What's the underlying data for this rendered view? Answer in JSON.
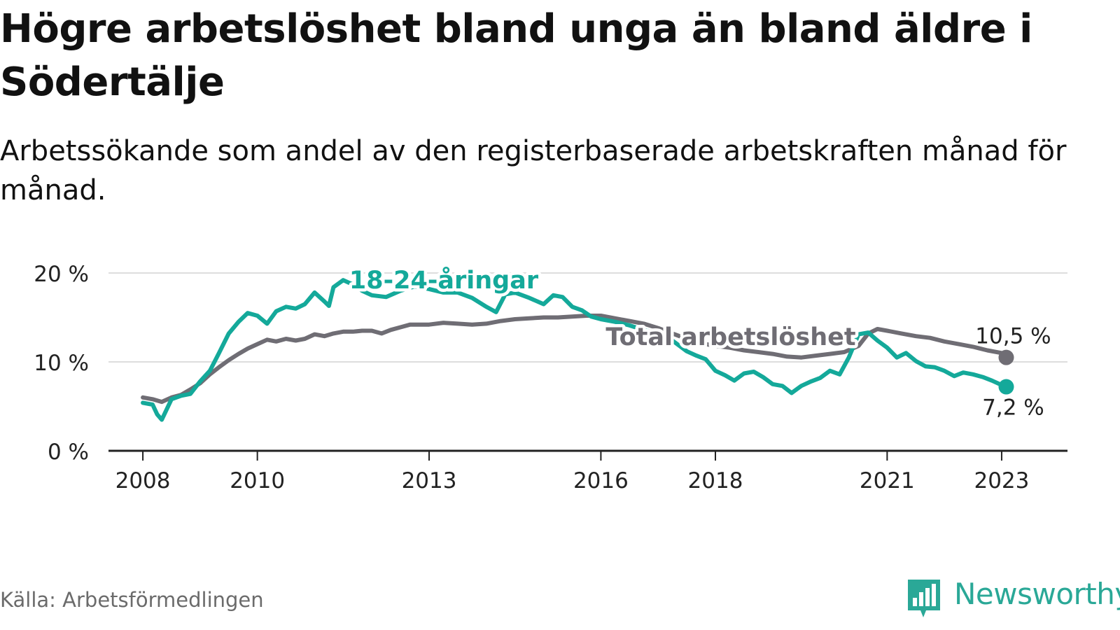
{
  "header": {
    "title": "Högre arbetslöshet bland unga än bland äldre i Södertälje",
    "subtitle": "Arbetssökande som andel av den registerbaserade arbetskraften månad för månad."
  },
  "footer": {
    "source": "Källa: Arbetsförmedlingen",
    "brand": "Newsworthy",
    "brand_icon": "newsworthy-bar-chart-icon"
  },
  "colors": {
    "total": "#6f6d74",
    "youth": "#14a99a",
    "grid": "#dddddd",
    "axis": "#222222",
    "brand": "#2aa897"
  },
  "chart_data": {
    "type": "line",
    "title": "Högre arbetslöshet bland unga än bland äldre i Södertälje",
    "subtitle": "Arbetssökande som andel av den registerbaserade arbetskraften månad för månad.",
    "xlabel": "",
    "ylabel": "",
    "x_unit": "year (decimal, monthly)",
    "xlim": [
      2007.4,
      2024.15
    ],
    "ylim": [
      0,
      20
    ],
    "x_ticks": [
      2008,
      2010,
      2013,
      2016,
      2018,
      2021,
      2023
    ],
    "x_tick_labels": [
      "2008",
      "2010",
      "2013",
      "2016",
      "2018",
      "2021",
      "2023"
    ],
    "y_ticks": [
      0,
      10,
      20
    ],
    "y_tick_labels": [
      "0 %",
      "10 %",
      "20 %"
    ],
    "grid": true,
    "series": [
      {
        "name": "Total arbetslöshet",
        "label": "Total arbetslöshet",
        "end_label": "10,5 %",
        "x": [
          2008.0,
          2008.17,
          2008.33,
          2008.5,
          2008.67,
          2008.83,
          2009.0,
          2009.17,
          2009.33,
          2009.5,
          2009.67,
          2009.83,
          2010.0,
          2010.17,
          2010.33,
          2010.5,
          2010.67,
          2010.83,
          2011.0,
          2011.17,
          2011.33,
          2011.5,
          2011.67,
          2011.83,
          2012.0,
          2012.17,
          2012.33,
          2012.5,
          2012.67,
          2012.83,
          2013.0,
          2013.25,
          2013.5,
          2013.75,
          2014.0,
          2014.25,
          2014.5,
          2014.75,
          2015.0,
          2015.25,
          2015.5,
          2015.75,
          2016.0,
          2016.25,
          2016.5,
          2016.75,
          2017.0,
          2017.25,
          2017.5,
          2017.75,
          2018.0,
          2018.25,
          2018.5,
          2018.75,
          2019.0,
          2019.25,
          2019.5,
          2019.75,
          2020.0,
          2020.25,
          2020.5,
          2020.67,
          2020.83,
          2021.0,
          2021.25,
          2021.5,
          2021.75,
          2022.0,
          2022.25,
          2022.5,
          2022.75,
          2023.0,
          2023.08
        ],
        "y": [
          6.0,
          5.8,
          5.5,
          6.0,
          6.3,
          6.9,
          7.6,
          8.6,
          9.4,
          10.2,
          10.9,
          11.5,
          12.0,
          12.5,
          12.3,
          12.6,
          12.4,
          12.6,
          13.1,
          12.9,
          13.2,
          13.4,
          13.4,
          13.5,
          13.5,
          13.2,
          13.6,
          13.9,
          14.2,
          14.2,
          14.2,
          14.4,
          14.3,
          14.2,
          14.3,
          14.6,
          14.8,
          14.9,
          15.0,
          15.0,
          15.1,
          15.2,
          15.2,
          14.9,
          14.6,
          14.3,
          13.8,
          13.2,
          12.6,
          12.1,
          11.8,
          11.6,
          11.3,
          11.1,
          10.9,
          10.6,
          10.5,
          10.7,
          10.9,
          11.1,
          11.8,
          13.2,
          13.7,
          13.5,
          13.2,
          12.9,
          12.7,
          12.3,
          12.0,
          11.7,
          11.3,
          11.0,
          10.5
        ]
      },
      {
        "name": "18-24-åringar",
        "label": "18-24-åringar",
        "end_label": "7,2 %",
        "x": [
          2008.0,
          2008.17,
          2008.25,
          2008.33,
          2008.5,
          2008.67,
          2008.83,
          2009.0,
          2009.17,
          2009.33,
          2009.5,
          2009.67,
          2009.83,
          2010.0,
          2010.17,
          2010.33,
          2010.5,
          2010.67,
          2010.83,
          2011.0,
          2011.17,
          2011.25,
          2011.33,
          2011.5,
          2011.67,
          2011.83,
          2012.0,
          2012.25,
          2012.5,
          2012.75,
          2013.0,
          2013.25,
          2013.5,
          2013.75,
          2014.0,
          2014.17,
          2014.33,
          2014.5,
          2014.75,
          2015.0,
          2015.17,
          2015.33,
          2015.5,
          2015.67,
          2015.83,
          2016.0,
          2016.25,
          2016.5,
          2016.75,
          2017.0,
          2017.25,
          2017.5,
          2017.67,
          2017.83,
          2018.0,
          2018.17,
          2018.33,
          2018.5,
          2018.67,
          2018.83,
          2019.0,
          2019.17,
          2019.33,
          2019.5,
          2019.67,
          2019.83,
          2020.0,
          2020.17,
          2020.33,
          2020.5,
          2020.67,
          2020.83,
          2021.0,
          2021.17,
          2021.33,
          2021.5,
          2021.67,
          2021.83,
          2022.0,
          2022.17,
          2022.33,
          2022.5,
          2022.67,
          2022.83,
          2023.0,
          2023.08
        ],
        "y": [
          5.4,
          5.2,
          4.1,
          3.5,
          5.8,
          6.2,
          6.4,
          7.8,
          9.0,
          11.0,
          13.2,
          14.5,
          15.5,
          15.2,
          14.3,
          15.7,
          16.2,
          16.0,
          16.5,
          17.8,
          16.8,
          16.3,
          18.4,
          19.2,
          18.7,
          18.0,
          17.5,
          17.3,
          18.0,
          18.5,
          18.2,
          17.8,
          17.8,
          17.2,
          16.2,
          15.6,
          17.6,
          17.8,
          17.2,
          16.5,
          17.5,
          17.3,
          16.2,
          15.8,
          15.1,
          14.8,
          14.5,
          14.1,
          13.6,
          13.2,
          12.4,
          11.2,
          10.7,
          10.3,
          9.0,
          8.5,
          7.9,
          8.7,
          8.9,
          8.3,
          7.5,
          7.3,
          6.5,
          7.3,
          7.8,
          8.2,
          9.0,
          8.6,
          10.5,
          13.1,
          13.3,
          12.4,
          11.6,
          10.5,
          11.0,
          10.1,
          9.5,
          9.4,
          9.0,
          8.4,
          8.8,
          8.6,
          8.3,
          7.9,
          7.4,
          7.2
        ]
      }
    ]
  }
}
